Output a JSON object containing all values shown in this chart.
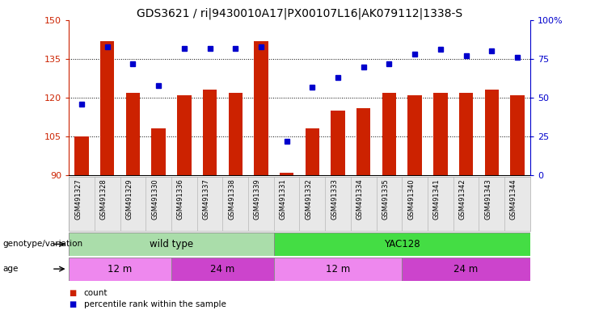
{
  "title": "GDS3621 / ri|9430010A17|PX00107L16|AK079112|1338-S",
  "samples": [
    "GSM491327",
    "GSM491328",
    "GSM491329",
    "GSM491330",
    "GSM491336",
    "GSM491337",
    "GSM491338",
    "GSM491339",
    "GSM491331",
    "GSM491332",
    "GSM491333",
    "GSM491334",
    "GSM491335",
    "GSM491340",
    "GSM491341",
    "GSM491342",
    "GSM491343",
    "GSM491344"
  ],
  "counts": [
    105,
    142,
    122,
    108,
    121,
    123,
    122,
    142,
    91,
    108,
    115,
    116,
    122,
    121,
    122,
    122,
    123,
    121
  ],
  "percentiles": [
    46,
    83,
    72,
    58,
    82,
    82,
    82,
    83,
    22,
    57,
    63,
    70,
    72,
    78,
    81,
    77,
    80,
    76
  ],
  "genotype_groups": [
    {
      "label": "wild type",
      "start": 0,
      "end": 8,
      "color": "#aaddaa"
    },
    {
      "label": "YAC128",
      "start": 8,
      "end": 18,
      "color": "#44dd44"
    }
  ],
  "age_groups": [
    {
      "label": "12 m",
      "start": 0,
      "end": 4,
      "color": "#ee88ee"
    },
    {
      "label": "24 m",
      "start": 4,
      "end": 8,
      "color": "#cc44cc"
    },
    {
      "label": "12 m",
      "start": 8,
      "end": 13,
      "color": "#ee88ee"
    },
    {
      "label": "24 m",
      "start": 13,
      "end": 18,
      "color": "#cc44cc"
    }
  ],
  "ylim_left": [
    90,
    150
  ],
  "ylim_right": [
    0,
    100
  ],
  "yticks_left": [
    90,
    105,
    120,
    135,
    150
  ],
  "yticks_right": [
    0,
    25,
    50,
    75,
    100
  ],
  "bar_color": "#cc2200",
  "scatter_color": "#0000cc",
  "title_fontsize": 10,
  "bar_width": 0.55,
  "bg_color": "#e8e8e8"
}
